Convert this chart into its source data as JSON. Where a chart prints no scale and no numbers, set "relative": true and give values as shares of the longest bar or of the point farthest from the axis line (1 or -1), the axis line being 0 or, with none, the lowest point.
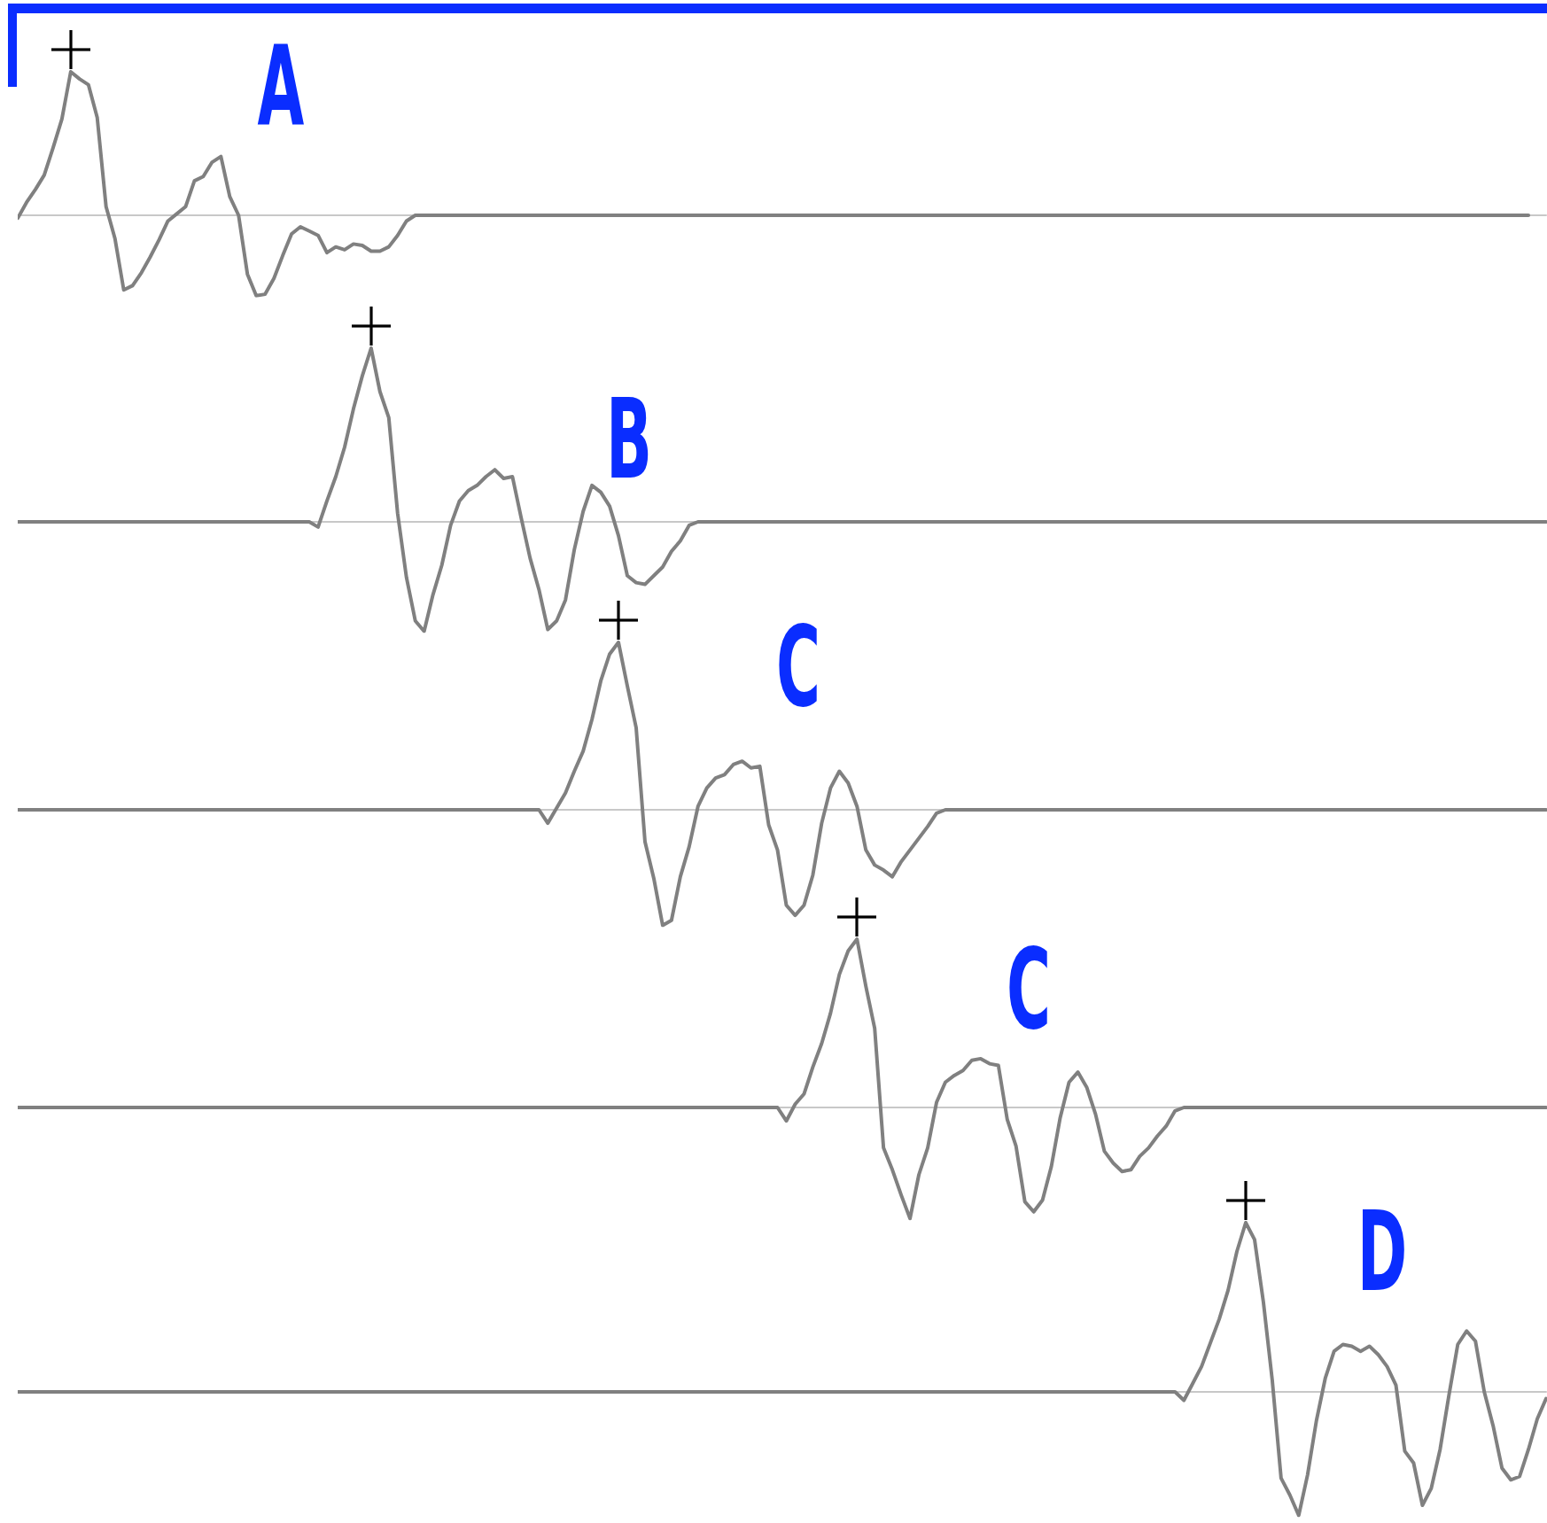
{
  "chart_data": [
    {
      "type": "line",
      "relative": true,
      "tick_labels": false,
      "color": "#808080",
      "annotations": [
        "A"
      ],
      "categories": [
        null,
        null,
        null,
        null,
        null,
        null,
        null,
        null,
        null,
        null,
        null,
        null,
        null,
        null,
        null,
        null,
        null,
        null,
        null,
        null,
        null,
        null,
        null,
        null,
        null,
        null,
        null,
        null,
        null,
        null,
        null,
        null,
        null,
        null,
        null,
        null,
        null,
        null,
        null,
        null,
        null,
        null,
        null,
        null,
        null,
        null,
        null,
        null,
        null,
        null,
        null,
        null,
        null,
        null,
        null,
        null,
        null,
        null,
        null,
        null,
        null,
        null,
        null,
        null,
        null,
        null,
        null,
        null,
        null,
        null,
        null,
        null,
        null,
        null,
        null,
        null,
        null,
        null,
        null,
        null,
        null,
        null,
        null,
        null,
        null,
        null,
        null,
        null,
        null,
        null,
        null,
        null,
        null,
        null,
        null,
        null,
        null,
        null,
        null,
        null,
        null,
        null,
        null,
        null,
        null,
        null,
        null,
        null,
        null,
        null,
        null,
        null,
        null,
        null,
        null,
        null,
        null,
        null,
        null,
        null,
        null,
        null,
        null,
        null,
        null,
        null,
        null,
        null,
        null,
        null,
        null,
        null,
        null,
        null,
        null,
        null,
        null,
        null,
        null,
        null,
        null,
        null,
        null,
        null,
        null,
        null,
        null,
        null,
        null,
        null,
        null,
        null,
        null,
        null,
        null,
        null,
        null,
        null,
        null,
        null,
        null,
        null,
        null,
        null,
        null,
        null,
        null,
        null,
        null,
        null,
        null,
        null,
        null,
        null
      ],
      "values": [
        -0.02,
        0.09,
        0.18,
        0.28,
        0.47,
        0.67,
        1,
        0.95,
        0.91,
        0.68,
        0.06,
        -0.16,
        -0.52,
        -0.49,
        -0.4,
        -0.29,
        -0.17,
        -0.04,
        0.01,
        0.06,
        0.24,
        0.27,
        0.37,
        0.41,
        0.13,
        0,
        -0.41,
        -0.56,
        -0.55,
        -0.44,
        -0.28,
        -0.13,
        -0.08,
        -0.11,
        -0.14,
        -0.26,
        -0.22,
        -0.24,
        -0.2,
        -0.21,
        -0.25,
        -0.25,
        -0.22,
        -0.14,
        -0.04,
        0,
        0,
        0,
        0,
        0,
        0,
        0,
        0,
        0,
        0,
        0,
        0,
        0,
        0,
        0,
        0,
        0,
        0,
        0,
        0,
        0,
        0,
        0,
        0,
        0,
        0,
        0,
        0,
        0,
        0,
        0,
        0,
        0,
        0,
        0,
        0,
        0,
        0,
        0,
        0,
        0,
        0,
        0,
        0,
        0,
        0,
        0,
        0,
        0,
        0,
        0,
        0,
        0,
        0,
        0,
        0,
        0,
        0,
        0,
        0,
        0,
        0,
        0,
        0,
        0,
        0,
        0,
        0,
        0,
        0,
        0,
        0,
        0,
        0,
        0,
        0,
        0,
        0,
        0,
        0,
        0,
        0,
        0,
        0,
        0,
        0,
        0,
        0,
        0,
        0,
        0,
        0,
        0,
        0,
        0,
        0,
        0,
        0,
        0,
        0,
        0,
        0,
        0,
        0,
        0,
        0,
        0,
        0,
        0,
        0,
        0,
        0,
        0,
        0,
        0,
        0,
        0,
        0,
        0,
        0,
        0,
        0,
        0,
        0,
        0,
        0,
        0,
        null,
        null
      ]
    },
    {
      "type": "line",
      "relative": true,
      "tick_labels": false,
      "color": "#808080",
      "annotations": [
        "B"
      ],
      "categories": [
        null,
        null,
        null,
        null,
        null,
        null,
        null,
        null,
        null,
        null,
        null,
        null,
        null,
        null,
        null,
        null,
        null,
        null,
        null,
        null,
        null,
        null,
        null,
        null,
        null,
        null,
        null,
        null,
        null,
        null,
        null,
        null,
        null,
        null,
        null,
        null,
        null,
        null,
        null,
        null,
        null,
        null,
        null,
        null,
        null,
        null,
        null,
        null,
        null,
        null,
        null,
        null,
        null,
        null,
        null,
        null,
        null,
        null,
        null,
        null,
        null,
        null,
        null,
        null,
        null,
        null,
        null,
        null,
        null,
        null,
        null,
        null,
        null,
        null,
        null,
        null,
        null,
        null,
        null,
        null,
        null,
        null,
        null,
        null,
        null,
        null,
        null,
        null,
        null,
        null,
        null,
        null,
        null,
        null,
        null,
        null,
        null,
        null,
        null,
        null,
        null,
        null,
        null,
        null,
        null,
        null,
        null,
        null,
        null,
        null,
        null,
        null,
        null,
        null,
        null,
        null,
        null,
        null,
        null,
        null,
        null,
        null,
        null,
        null,
        null,
        null,
        null,
        null,
        null,
        null,
        null,
        null,
        null,
        null,
        null,
        null,
        null,
        null,
        null,
        null,
        null,
        null,
        null,
        null,
        null,
        null,
        null,
        null,
        null,
        null,
        null,
        null,
        null,
        null,
        null,
        null,
        null,
        null,
        null,
        null,
        null,
        null,
        null,
        null,
        null,
        null,
        null,
        null,
        null,
        null,
        null,
        null,
        null,
        null
      ],
      "values": [
        0,
        0,
        0,
        0,
        0,
        0,
        0,
        0,
        0,
        0,
        0,
        0,
        0,
        0,
        0,
        0,
        0,
        0,
        0,
        0,
        0,
        0,
        0,
        0,
        0,
        0,
        0,
        0,
        0,
        0,
        0,
        0,
        0,
        0,
        -0.03,
        0.12,
        0.26,
        0.43,
        0.65,
        0.84,
        1,
        0.75,
        0.6,
        0.05,
        -0.32,
        -0.57,
        -0.63,
        -0.42,
        -0.25,
        -0.02,
        0.12,
        0.18,
        0.21,
        0.26,
        0.3,
        0.25,
        0.26,
        0.02,
        -0.21,
        -0.39,
        -0.62,
        -0.57,
        -0.45,
        -0.16,
        0.06,
        0.21,
        0.17,
        0.09,
        -0.08,
        -0.31,
        -0.35,
        -0.36,
        -0.31,
        -0.26,
        -0.17,
        -0.11,
        -0.02,
        0,
        0,
        0,
        0,
        0,
        0,
        0,
        0,
        0,
        0,
        0,
        0,
        0,
        0,
        0,
        0,
        0,
        0,
        0,
        0,
        0,
        0,
        0,
        0,
        0,
        0,
        0,
        0,
        0,
        0,
        0,
        0,
        0,
        0,
        0,
        0,
        0,
        0,
        0,
        0,
        0,
        0,
        0,
        0,
        0,
        0,
        0,
        0,
        0,
        0,
        0,
        0,
        0,
        0,
        0,
        0,
        0,
        0,
        0,
        0,
        0,
        0,
        0,
        0,
        0,
        0,
        0,
        0,
        0,
        0,
        0,
        0,
        0,
        0,
        0,
        0,
        0,
        0,
        0,
        0,
        0,
        0,
        0,
        0,
        0,
        0,
        0,
        0,
        0,
        0,
        0,
        0,
        0,
        0,
        0,
        0,
        0
      ]
    },
    {
      "type": "line",
      "relative": true,
      "tick_labels": false,
      "color": "#808080",
      "annotations": [
        "C"
      ],
      "categories": [
        null,
        null,
        null,
        null,
        null,
        null,
        null,
        null,
        null,
        null,
        null,
        null,
        null,
        null,
        null,
        null,
        null,
        null,
        null,
        null,
        null,
        null,
        null,
        null,
        null,
        null,
        null,
        null,
        null,
        null,
        null,
        null,
        null,
        null,
        null,
        null,
        null,
        null,
        null,
        null,
        null,
        null,
        null,
        null,
        null,
        null,
        null,
        null,
        null,
        null,
        null,
        null,
        null,
        null,
        null,
        null,
        null,
        null,
        null,
        null,
        null,
        null,
        null,
        null,
        null,
        null,
        null,
        null,
        null,
        null,
        null,
        null,
        null,
        null,
        null,
        null,
        null,
        null,
        null,
        null,
        null,
        null,
        null,
        null,
        null,
        null,
        null,
        null,
        null,
        null,
        null,
        null,
        null,
        null,
        null,
        null,
        null,
        null,
        null,
        null,
        null,
        null,
        null,
        null,
        null,
        null,
        null,
        null,
        null,
        null,
        null,
        null,
        null,
        null,
        null,
        null,
        null,
        null,
        null,
        null,
        null,
        null,
        null,
        null,
        null,
        null,
        null,
        null,
        null,
        null,
        null,
        null,
        null,
        null,
        null,
        null,
        null,
        null,
        null,
        null,
        null,
        null,
        null,
        null,
        null,
        null,
        null,
        null,
        null,
        null,
        null,
        null,
        null,
        null,
        null,
        null,
        null,
        null,
        null,
        null,
        null,
        null,
        null,
        null,
        null,
        null,
        null,
        null,
        null,
        null,
        null,
        null,
        null,
        null
      ],
      "values": [
        0,
        0,
        0,
        0,
        0,
        0,
        0,
        0,
        0,
        0,
        0,
        0,
        0,
        0,
        0,
        0,
        0,
        0,
        0,
        0,
        0,
        0,
        0,
        0,
        0,
        0,
        0,
        0,
        0,
        0,
        0,
        0,
        0,
        0,
        0,
        0,
        0,
        0,
        0,
        0,
        0,
        0,
        0,
        0,
        0,
        0,
        0,
        0,
        0,
        0,
        0,
        0,
        0,
        0,
        0,
        0,
        0,
        0,
        0,
        0,
        -0.08,
        0.01,
        0.1,
        0.23,
        0.35,
        0.54,
        0.77,
        0.93,
        1,
        0.74,
        0.49,
        -0.19,
        -0.41,
        -0.69,
        -0.66,
        -0.4,
        -0.22,
        0.02,
        0.13,
        0.19,
        0.21,
        0.27,
        0.29,
        0.25,
        0.26,
        -0.09,
        -0.24,
        -0.57,
        -0.63,
        -0.57,
        -0.39,
        -0.08,
        0.13,
        0.23,
        0.16,
        0.02,
        -0.24,
        -0.33,
        -0.36,
        -0.4,
        -0.31,
        -0.24,
        -0.17,
        -0.1,
        -0.02,
        0,
        0,
        0,
        0,
        0,
        0,
        0,
        0,
        0,
        0,
        0,
        0,
        0,
        0,
        0,
        0,
        0,
        0,
        0,
        0,
        0,
        0,
        0,
        0,
        0,
        0,
        0,
        0,
        0,
        0,
        0,
        0,
        0,
        0,
        0,
        0,
        0,
        0,
        0,
        0,
        0,
        0,
        0,
        0,
        0,
        0,
        0,
        0,
        0,
        0,
        0,
        0,
        0,
        0,
        0,
        0,
        0,
        0,
        0,
        0,
        0,
        0,
        0,
        0,
        0,
        0,
        0,
        0,
        0
      ]
    },
    {
      "type": "line",
      "relative": true,
      "tick_labels": false,
      "color": "#808080",
      "annotations": [
        "C"
      ],
      "categories": [
        null,
        null,
        null,
        null,
        null,
        null,
        null,
        null,
        null,
        null,
        null,
        null,
        null,
        null,
        null,
        null,
        null,
        null,
        null,
        null,
        null,
        null,
        null,
        null,
        null,
        null,
        null,
        null,
        null,
        null,
        null,
        null,
        null,
        null,
        null,
        null,
        null,
        null,
        null,
        null,
        null,
        null,
        null,
        null,
        null,
        null,
        null,
        null,
        null,
        null,
        null,
        null,
        null,
        null,
        null,
        null,
        null,
        null,
        null,
        null,
        null,
        null,
        null,
        null,
        null,
        null,
        null,
        null,
        null,
        null,
        null,
        null,
        null,
        null,
        null,
        null,
        null,
        null,
        null,
        null,
        null,
        null,
        null,
        null,
        null,
        null,
        null,
        null,
        null,
        null,
        null,
        null,
        null,
        null,
        null,
        null,
        null,
        null,
        null,
        null,
        null,
        null,
        null,
        null,
        null,
        null,
        null,
        null,
        null,
        null,
        null,
        null,
        null,
        null,
        null,
        null,
        null,
        null,
        null,
        null,
        null,
        null,
        null,
        null,
        null,
        null,
        null,
        null,
        null,
        null,
        null,
        null,
        null,
        null,
        null,
        null,
        null,
        null,
        null,
        null,
        null,
        null,
        null,
        null,
        null,
        null,
        null,
        null,
        null,
        null,
        null,
        null,
        null,
        null,
        null,
        null,
        null,
        null,
        null,
        null,
        null,
        null,
        null,
        null,
        null,
        null,
        null,
        null,
        null,
        null,
        null,
        null,
        null,
        null
      ],
      "values": [
        0,
        0,
        0,
        0,
        0,
        0,
        0,
        0,
        0,
        0,
        0,
        0,
        0,
        0,
        0,
        0,
        0,
        0,
        0,
        0,
        0,
        0,
        0,
        0,
        0,
        0,
        0,
        0,
        0,
        0,
        0,
        0,
        0,
        0,
        0,
        0,
        0,
        0,
        0,
        0,
        0,
        0,
        0,
        0,
        0,
        0,
        0,
        0,
        0,
        0,
        0,
        0,
        0,
        0,
        0,
        0,
        0,
        0,
        0,
        0,
        0,
        0,
        0,
        0,
        0,
        0,
        0,
        0,
        0,
        0,
        0,
        0,
        0,
        0,
        0,
        0,
        0,
        0,
        0,
        0,
        0,
        0,
        0,
        0,
        0,
        0,
        0,
        -0.08,
        0.02,
        0.08,
        0.24,
        0.38,
        0.56,
        0.79,
        0.93,
        1,
        0.72,
        0.47,
        -0.24,
        -0.37,
        -0.52,
        -0.66,
        -0.4,
        -0.24,
        0.03,
        0.15,
        0.19,
        0.22,
        0.28,
        0.29,
        0.26,
        0.25,
        -0.07,
        -0.23,
        -0.56,
        -0.62,
        -0.55,
        -0.35,
        -0.06,
        0.15,
        0.21,
        0.12,
        -0.04,
        -0.26,
        -0.33,
        -0.38,
        -0.37,
        -0.29,
        -0.24,
        -0.17,
        -0.11,
        -0.02,
        0,
        0,
        0,
        0,
        0,
        0,
        0,
        0,
        0,
        0,
        0,
        0,
        0,
        0,
        0,
        0,
        0,
        0,
        0,
        0,
        0,
        0,
        0,
        0,
        0,
        0,
        0,
        0,
        0,
        0,
        0,
        0,
        0,
        0,
        0,
        0,
        0,
        0,
        0,
        0,
        0,
        0
      ]
    },
    {
      "type": "line",
      "relative": true,
      "tick_labels": false,
      "color": "#808080",
      "annotations": [
        "D"
      ],
      "categories": [
        null,
        null,
        null,
        null,
        null,
        null,
        null,
        null,
        null,
        null,
        null,
        null,
        null,
        null,
        null,
        null,
        null,
        null,
        null,
        null,
        null,
        null,
        null,
        null,
        null,
        null,
        null,
        null,
        null,
        null,
        null,
        null,
        null,
        null,
        null,
        null,
        null,
        null,
        null,
        null,
        null,
        null,
        null,
        null,
        null,
        null,
        null,
        null,
        null,
        null,
        null,
        null,
        null,
        null,
        null,
        null,
        null,
        null,
        null,
        null,
        null,
        null,
        null,
        null,
        null,
        null,
        null,
        null,
        null,
        null,
        null,
        null,
        null,
        null,
        null,
        null,
        null,
        null,
        null,
        null,
        null,
        null,
        null,
        null,
        null,
        null,
        null,
        null,
        null,
        null,
        null,
        null,
        null,
        null,
        null,
        null,
        null,
        null,
        null,
        null,
        null,
        null,
        null,
        null,
        null,
        null,
        null,
        null,
        null,
        null,
        null,
        null,
        null,
        null,
        null,
        null,
        null,
        null,
        null,
        null,
        null,
        null,
        null,
        null,
        null,
        null,
        null,
        null,
        null,
        null,
        null,
        null,
        null,
        null,
        null,
        null,
        null,
        null,
        null,
        null,
        null,
        null,
        null,
        null,
        null,
        null,
        null,
        null,
        null,
        null,
        null,
        null,
        null,
        null,
        null,
        null,
        null,
        null,
        null,
        null,
        null,
        null,
        null,
        null,
        null,
        null,
        null,
        null,
        null,
        null,
        null,
        null,
        null,
        null
      ],
      "values": [
        0,
        0,
        0,
        0,
        0,
        0,
        0,
        0,
        0,
        0,
        0,
        0,
        0,
        0,
        0,
        0,
        0,
        0,
        0,
        0,
        0,
        0,
        0,
        0,
        0,
        0,
        0,
        0,
        0,
        0,
        0,
        0,
        0,
        0,
        0,
        0,
        0,
        0,
        0,
        0,
        0,
        0,
        0,
        0,
        0,
        0,
        0,
        0,
        0,
        0,
        0,
        0,
        0,
        0,
        0,
        0,
        0,
        0,
        0,
        0,
        0,
        0,
        0,
        0,
        0,
        0,
        0,
        0,
        0,
        0,
        0,
        0,
        0,
        0,
        0,
        0,
        0,
        0,
        0,
        0,
        0,
        0,
        0,
        0,
        0,
        0,
        0,
        0,
        0,
        0,
        0,
        0,
        0,
        0,
        0,
        0,
        0,
        0,
        0,
        0,
        0,
        0,
        0,
        0,
        0,
        0,
        0,
        0,
        0,
        0,
        0,
        0,
        0,
        0,
        0,
        0,
        0,
        0,
        0,
        0,
        0,
        0,
        0,
        0,
        0,
        0,
        0,
        0,
        0,
        0,
        0,
        0,
        -0.05,
        0.05,
        0.15,
        0.29,
        0.43,
        0.6,
        0.83,
        1,
        0.9,
        0.53,
        0.07,
        -0.51,
        -0.61,
        -0.73,
        -0.49,
        -0.17,
        0.08,
        0.24,
        0.28,
        0.27,
        0.24,
        0.27,
        0.22,
        0.15,
        0.04,
        -0.35,
        -0.42,
        -0.67,
        -0.57,
        -0.34,
        -0.02,
        0.28,
        0.36,
        0.3,
        0,
        -0.2,
        -0.45,
        -0.52,
        -0.5,
        -0.34,
        -0.16,
        -0.04
      ]
    }
  ]
}
